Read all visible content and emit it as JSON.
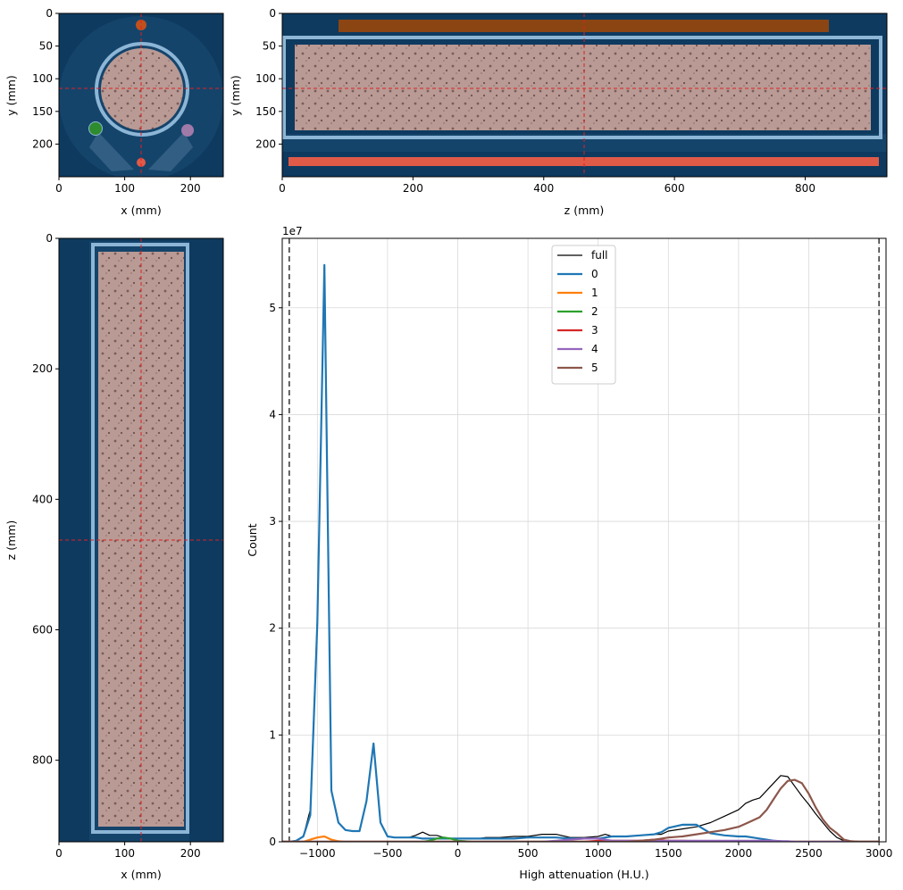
{
  "panels": {
    "axial": {
      "xlabel": "x (mm)",
      "ylabel": "y (mm)",
      "xticks": [
        "0",
        "100",
        "200"
      ],
      "xtick_values": [
        0,
        100,
        200
      ],
      "yticks": [
        "0",
        "50",
        "100",
        "150",
        "200"
      ],
      "ytick_values": [
        0,
        50,
        100,
        150,
        200
      ],
      "xlim": [
        0,
        250
      ],
      "ylim": [
        0,
        250
      ],
      "crosshair": {
        "x": 125,
        "y": 115
      }
    },
    "sagittal": {
      "xlabel": "z (mm)",
      "ylabel": "y (mm)",
      "xticks": [
        "0",
        "200",
        "400",
        "600",
        "800"
      ],
      "xtick_values": [
        0,
        200,
        400,
        600,
        800
      ],
      "yticks": [
        "0",
        "50",
        "100",
        "150",
        "200"
      ],
      "ytick_values": [
        0,
        50,
        100,
        150,
        200
      ],
      "xlim": [
        0,
        925
      ],
      "ylim": [
        0,
        250
      ],
      "crosshair": {
        "x": 462,
        "y": 115
      }
    },
    "coronal": {
      "xlabel": "x (mm)",
      "ylabel": "z (mm)",
      "xticks": [
        "0",
        "100",
        "200"
      ],
      "xtick_values": [
        0,
        100,
        200
      ],
      "yticks": [
        "0",
        "200",
        "400",
        "600",
        "800"
      ],
      "ytick_values": [
        0,
        200,
        400,
        600,
        800
      ],
      "xlim": [
        0,
        250
      ],
      "ylim": [
        0,
        925
      ],
      "crosshair": {
        "x": 125,
        "y": 462
      }
    }
  },
  "colors": {
    "background": "#0e3a5f",
    "sample": "#b99a95",
    "tube": "#8db6d6",
    "crosshair": "#e02020",
    "marker_orange": "#c0501c",
    "marker_green": "#2e8b2e",
    "marker_purple": "#a07aa8",
    "marker_red": "#e05a48"
  },
  "chart_data": {
    "type": "line",
    "xlabel": "High attenuation (H.U.)",
    "ylabel": "Count",
    "offset_label": "1e7",
    "xlim": [
      -1250,
      3050
    ],
    "ylim": [
      0,
      5.65
    ],
    "xticks": [
      "−1000",
      "−500",
      "0",
      "500",
      "1000",
      "1500",
      "2000",
      "2500",
      "3000"
    ],
    "xtick_values": [
      -1000,
      -500,
      0,
      500,
      1000,
      1500,
      2000,
      2500,
      3000
    ],
    "yticks": [
      "0",
      "1",
      "2",
      "3",
      "4",
      "5"
    ],
    "ytick_values": [
      0,
      1,
      2,
      3,
      4,
      5
    ],
    "grid": true,
    "legend_position": "top-center",
    "vlines": [
      -1200,
      3000
    ],
    "x": [
      -1250,
      -1200,
      -1150,
      -1100,
      -1050,
      -1000,
      -950,
      -900,
      -850,
      -800,
      -750,
      -700,
      -650,
      -600,
      -550,
      -500,
      -450,
      -400,
      -350,
      -300,
      -250,
      -200,
      -150,
      -100,
      -50,
      0,
      50,
      100,
      150,
      200,
      300,
      400,
      500,
      600,
      700,
      800,
      900,
      1000,
      1050,
      1100,
      1200,
      1300,
      1400,
      1450,
      1500,
      1600,
      1700,
      1800,
      1900,
      2000,
      2050,
      2100,
      2150,
      2200,
      2250,
      2300,
      2350,
      2400,
      2450,
      2500,
      2550,
      2600,
      2650,
      2700,
      2750,
      2800,
      2850,
      2900,
      3000
    ],
    "series": [
      {
        "name": "full",
        "color": "#000000",
        "width": 1.2,
        "values": [
          0,
          0,
          0.01,
          0.05,
          0.3,
          2.1,
          5.4,
          0.48,
          0.18,
          0.11,
          0.1,
          0.1,
          0.38,
          0.92,
          0.18,
          0.05,
          0.04,
          0.04,
          0.04,
          0.06,
          0.09,
          0.06,
          0.06,
          0.04,
          0.03,
          0.03,
          0.03,
          0.03,
          0.03,
          0.04,
          0.04,
          0.05,
          0.05,
          0.07,
          0.07,
          0.04,
          0.04,
          0.05,
          0.07,
          0.05,
          0.05,
          0.06,
          0.07,
          0.07,
          0.1,
          0.12,
          0.14,
          0.18,
          0.24,
          0.3,
          0.36,
          0.39,
          0.41,
          0.48,
          0.55,
          0.62,
          0.61,
          0.52,
          0.43,
          0.35,
          0.26,
          0.18,
          0.1,
          0.04,
          0.01,
          0.005,
          0.002,
          0,
          0
        ]
      },
      {
        "name": "0",
        "color": "#1f77b4",
        "width": 2.2,
        "values": [
          0,
          0,
          0.01,
          0.05,
          0.25,
          2.05,
          5.4,
          0.48,
          0.18,
          0.11,
          0.1,
          0.1,
          0.38,
          0.92,
          0.18,
          0.05,
          0.04,
          0.04,
          0.04,
          0.04,
          0.03,
          0.03,
          0.03,
          0.03,
          0.03,
          0.03,
          0.03,
          0.03,
          0.03,
          0.03,
          0.03,
          0.03,
          0.04,
          0.04,
          0.04,
          0.03,
          0.03,
          0.03,
          0.04,
          0.05,
          0.05,
          0.06,
          0.07,
          0.09,
          0.13,
          0.16,
          0.16,
          0.08,
          0.06,
          0.05,
          0.05,
          0.04,
          0.03,
          0.02,
          0.01,
          0.005,
          0.002,
          0,
          0,
          0,
          0,
          0,
          0,
          0,
          0,
          0,
          0,
          0,
          0
        ]
      },
      {
        "name": "1",
        "color": "#ff7f0e",
        "width": 2.2,
        "values": [
          0,
          0,
          0,
          0,
          0.02,
          0.04,
          0.05,
          0.02,
          0.005,
          0,
          0,
          0,
          0,
          0,
          0,
          0,
          0,
          0,
          0,
          0,
          0,
          0,
          0,
          0,
          0,
          0,
          0,
          0,
          0,
          0,
          0,
          0,
          0,
          0,
          0,
          0,
          0,
          0,
          0,
          0,
          0,
          0,
          0,
          0,
          0,
          0,
          0,
          0,
          0,
          0,
          0,
          0,
          0,
          0,
          0,
          0,
          0,
          0,
          0,
          0,
          0,
          0,
          0,
          0,
          0,
          0,
          0,
          0,
          0
        ]
      },
      {
        "name": "2",
        "color": "#2ca02c",
        "width": 2.2,
        "values": [
          0,
          0,
          0,
          0,
          0,
          0,
          0,
          0,
          0,
          0,
          0,
          0,
          0,
          0,
          0,
          0,
          0,
          0,
          0,
          0,
          0,
          0.01,
          0.03,
          0.04,
          0.03,
          0.01,
          0.005,
          0,
          0,
          0,
          0,
          0,
          0,
          0,
          0,
          0,
          0,
          0,
          0,
          0,
          0,
          0,
          0,
          0,
          0,
          0,
          0,
          0,
          0,
          0,
          0,
          0,
          0,
          0,
          0,
          0,
          0,
          0,
          0,
          0,
          0,
          0,
          0,
          0,
          0,
          0,
          0,
          0,
          0
        ]
      },
      {
        "name": "3",
        "color": "#d62728",
        "width": 2.2,
        "values": [
          0,
          0,
          0,
          0,
          0,
          0,
          0,
          0,
          0,
          0,
          0,
          0,
          0,
          0,
          0,
          0,
          0,
          0,
          0,
          0,
          0,
          0,
          0,
          0,
          0,
          0,
          0,
          0,
          0,
          0,
          0,
          0,
          0,
          0,
          0,
          0,
          0,
          0.01,
          0.015,
          0.01,
          0.01,
          0.01,
          0.02,
          0.015,
          0.01,
          0.01,
          0.005,
          0,
          0,
          0,
          0,
          0,
          0,
          0,
          0,
          0,
          0,
          0,
          0,
          0,
          0,
          0,
          0,
          0,
          0,
          0,
          0,
          0,
          0
        ]
      },
      {
        "name": "4",
        "color": "#9467bd",
        "width": 2.2,
        "values": [
          0,
          0,
          0,
          0,
          0,
          0,
          0,
          0,
          0,
          0,
          0,
          0,
          0,
          0,
          0,
          0,
          0,
          0,
          0,
          0,
          0,
          0,
          0,
          0,
          0,
          0,
          0,
          0,
          0,
          0,
          0,
          0,
          0,
          0,
          0.01,
          0.02,
          0.03,
          0.03,
          0.02,
          0.01,
          0.01,
          0.01,
          0.01,
          0.01,
          0.01,
          0.01,
          0.01,
          0.01,
          0.01,
          0.01,
          0.01,
          0.01,
          0.01,
          0.01,
          0.01,
          0.005,
          0.005,
          0,
          0,
          0,
          0,
          0,
          0,
          0,
          0,
          0,
          0,
          0,
          0
        ]
      },
      {
        "name": "5",
        "color": "#8c564b",
        "width": 2.2,
        "values": [
          0,
          0,
          0,
          0,
          0,
          0,
          0,
          0,
          0,
          0,
          0,
          0,
          0,
          0,
          0,
          0,
          0,
          0,
          0,
          0,
          0,
          0,
          0,
          0,
          0,
          0,
          0,
          0,
          0,
          0,
          0,
          0,
          0,
          0,
          0,
          0,
          0,
          0,
          0,
          0,
          0,
          0.01,
          0.02,
          0.03,
          0.04,
          0.05,
          0.07,
          0.09,
          0.11,
          0.14,
          0.17,
          0.2,
          0.23,
          0.3,
          0.4,
          0.5,
          0.57,
          0.58,
          0.55,
          0.45,
          0.32,
          0.21,
          0.13,
          0.08,
          0.02,
          0.005,
          0.002,
          0,
          0
        ]
      }
    ]
  }
}
